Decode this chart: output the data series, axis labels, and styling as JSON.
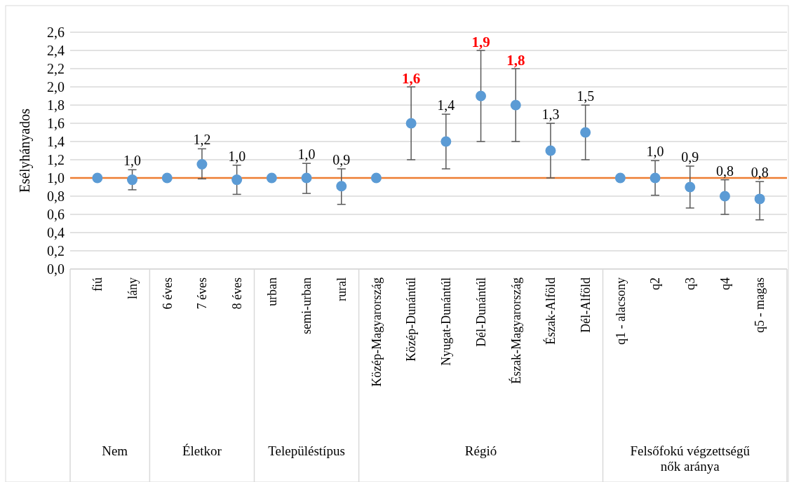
{
  "chart_data": {
    "type": "scatter",
    "ylabel": "Esélyhányados",
    "categories": [
      "fiú",
      "lány",
      "6 éves",
      "7 éves",
      "8 éves",
      "urban",
      "semi-urban",
      "rural",
      "Közép-Magyarország",
      "Közép-Dunántúl",
      "Nyugat-Dunántúl",
      "Dél-Dunántúl",
      "Észak-Magyarország",
      "Észak-Alföld",
      "Dél-Alföld",
      "q1 - alacsony",
      "q2",
      "q3",
      "q4",
      "q5 - magas"
    ],
    "series": [
      {
        "color": "#5b9bd5",
        "values": [
          1.0,
          0.98,
          1.0,
          1.15,
          0.98,
          1.0,
          1.0,
          0.91,
          1.0,
          1.6,
          1.4,
          1.9,
          1.8,
          1.3,
          1.5,
          1.0,
          1.0,
          0.9,
          0.8,
          0.77
        ],
        "errors": [
          null,
          [
            0.87,
            1.09
          ],
          null,
          [
            0.99,
            1.32
          ],
          [
            0.82,
            1.14
          ],
          null,
          [
            0.83,
            1.16
          ],
          [
            0.71,
            1.1
          ],
          null,
          [
            1.2,
            2.0
          ],
          [
            1.1,
            1.7
          ],
          [
            1.4,
            2.4
          ],
          [
            1.4,
            2.2
          ],
          [
            1.0,
            1.6
          ],
          [
            1.2,
            1.8
          ],
          null,
          [
            0.81,
            1.19
          ],
          [
            0.67,
            1.13
          ],
          [
            0.6,
            0.98
          ],
          [
            0.54,
            0.96
          ]
        ],
        "value_labels": [
          null,
          "1,0",
          null,
          "1,2",
          "1,0",
          null,
          "1,0",
          "0,9",
          null,
          null,
          "1,4",
          null,
          null,
          "1,3",
          "1,5",
          null,
          "1,0",
          "0,9",
          "0,8",
          "0,8"
        ]
      }
    ],
    "marker": "circle",
    "ylim": [
      0,
      2.6
    ],
    "yticks": [
      {
        "value": 0,
        "label": "0,0"
      },
      {
        "value": 0.2,
        "label": "0,2"
      },
      {
        "value": 0.4,
        "label": "0,4"
      },
      {
        "value": 0.6,
        "label": "0,6"
      },
      {
        "value": 0.8,
        "label": "0,8"
      },
      {
        "value": 1.0,
        "label": "1,0"
      },
      {
        "value": 1.2,
        "label": "1,2"
      },
      {
        "value": 1.4,
        "label": "1,4"
      },
      {
        "value": 1.6,
        "label": "1,6"
      },
      {
        "value": 1.8,
        "label": "1,8"
      },
      {
        "value": 2.0,
        "label": "2,0"
      },
      {
        "value": 2.2,
        "label": "2,2"
      },
      {
        "value": 2.4,
        "label": "2,4"
      },
      {
        "value": 2.6,
        "label": "2,6"
      }
    ],
    "grid": "y",
    "ref_lines": [
      {
        "axis": "y",
        "value": 1,
        "color": "#ed7d31"
      }
    ],
    "annotations": [
      {
        "text": "1,6",
        "x": "Közép-Dunántúl",
        "y": 2.0
      },
      {
        "text": "1,9",
        "x": "Dél-Dunántúl",
        "y": 2.4
      },
      {
        "text": "1,8",
        "x": "Észak-Magyarország",
        "y": 2.2
      },
      "Nem",
      "Életkor",
      "Településtípus",
      "Régió",
      "Felsőfokú végzettségű nők aránya"
    ]
  }
}
